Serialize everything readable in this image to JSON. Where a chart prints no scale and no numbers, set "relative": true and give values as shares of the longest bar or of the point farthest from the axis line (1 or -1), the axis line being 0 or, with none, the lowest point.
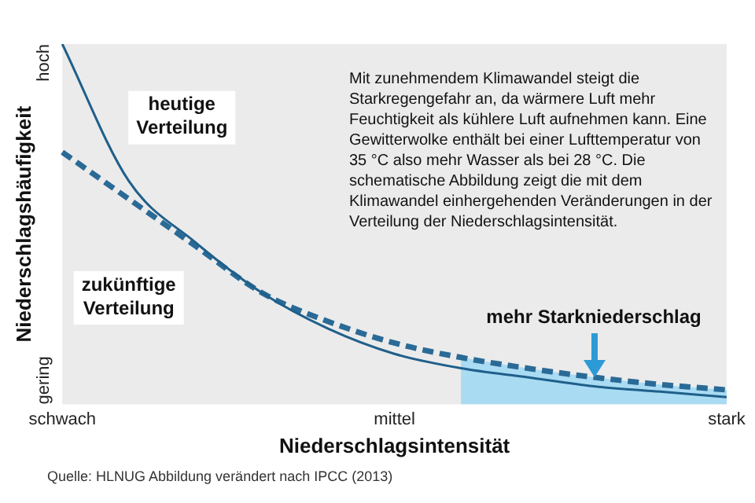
{
  "chart_data": {
    "type": "line",
    "relative": true,
    "xlabel": "Niederschlagsintensität",
    "ylabel": "Niederschlagshäufigkeit",
    "categories": [
      "schwach",
      null,
      null,
      null,
      null,
      "mittel",
      null,
      null,
      null,
      null,
      "stark"
    ],
    "grid": false,
    "legend": false,
    "marker": "none",
    "series": [
      {
        "type": "area",
        "color": "#a9dbf3",
        "values": [
          null,
          null,
          null,
          null,
          null,
          null,
          0.13,
          0.1,
          0.075,
          0.055,
          0.04
        ]
      },
      {
        "name": "heutige Verteilung",
        "color": "#1f5f8b",
        "line_style": "solid",
        "values": [
          1,
          0.62,
          0.45,
          0.31,
          0.21,
          0.14,
          0.1,
          0.075,
          0.05,
          0.035,
          0.02
        ]
      },
      {
        "name": "zukünftige Verteilung",
        "color": "#2a6a96",
        "line_style": "dashed",
        "values": [
          0.7,
          0.57,
          0.44,
          0.31,
          0.23,
          0.17,
          0.13,
          0.1,
          0.075,
          0.055,
          0.04
        ]
      }
    ],
    "annotations": [
      "Mit zunehmendem Klimawandel steigt die Starkregengefahr an, da wärmere Luft mehr Feuchtigkeit als kühlere Luft aufnehmen kann. Eine Gewitterwolke enthält bei einer Lufttemperatur von 35 °C also mehr Wasser als bei 28 °C. Die schematische Abbildung zeigt die mit dem Klimawandel einhergehenden Veränderungen in der Verteilung der Niederschlagsintensität.",
      "hoch",
      "gering",
      "mehr Starkniederschlag",
      "Quelle: HLNUG Abbildung verändert nach IPCC (2013)"
    ]
  }
}
